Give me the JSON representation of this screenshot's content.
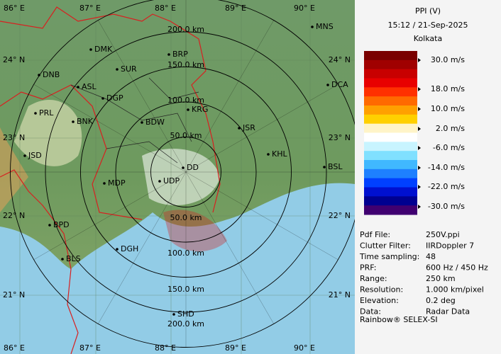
{
  "header": {
    "title": "PPI (V)",
    "datetime": "15:12 / 21-Sep-2025",
    "station": "Kolkata"
  },
  "colorbar": {
    "labels": [
      "30.0 m/s",
      "18.0 m/s",
      "10.0 m/s",
      "2.0 m/s",
      "-6.0 m/s",
      "-14.0 m/s",
      "-22.0 m/s",
      "-30.0 m/s"
    ],
    "colors": [
      "#7a0000",
      "#a00000",
      "#c80000",
      "#e80000",
      "#ff3000",
      "#ff6a00",
      "#ffa000",
      "#ffd000",
      "#fff4c8",
      "#ffffff",
      "#c8f4ff",
      "#80e0ff",
      "#40b8ff",
      "#1e80ff",
      "#0040ff",
      "#0010d0",
      "#000090",
      "#400070"
    ]
  },
  "info": {
    "rows": [
      [
        "Pdf File:",
        "250V.ppi"
      ],
      [
        "Clutter Filter:",
        "IIRDoppler 7"
      ],
      [
        "Time sampling:",
        "48"
      ],
      [
        "PRF:",
        "600 Hz / 450 Hz"
      ],
      [
        "Range:",
        "250 km"
      ],
      [
        "Resolution:",
        "1.000 km/pixel"
      ],
      [
        "Elevation:",
        "0.2 deg"
      ],
      [
        "Data:",
        "Radar Data"
      ]
    ]
  },
  "footer": "Rainbow® SELEX-SI",
  "map": {
    "lon_labels_top": [
      "86° E",
      "87° E",
      "88° E",
      "89° E",
      "90° E"
    ],
    "lon_labels_bottom": [
      "86° E",
      "87° E",
      "88° E",
      "89° E",
      "90° E"
    ],
    "lat_labels_left": [
      "24° N",
      "23° N",
      "22° N",
      "21° N"
    ],
    "lat_labels_right": [
      "24° N",
      "23° N",
      "22° N",
      "21° N"
    ],
    "range_labels_top": [
      "200.0 km",
      "150.0 km",
      "100.0 km",
      "50.0 km"
    ],
    "range_labels_bottom": [
      "50.0 km",
      "100.0 km",
      "150.0 km",
      "200.0 km"
    ],
    "cities": [
      "MNS",
      "DMK",
      "BRP",
      "DNB",
      "SUR",
      "DCA",
      "ASL",
      "DGP",
      "KRG",
      "PRL",
      "BNK",
      "BDW",
      "JSR",
      "KHL",
      "JSD",
      "BSL",
      "DD",
      "UDP",
      "MDP",
      "BPD",
      "DGH",
      "BLS",
      "SHD"
    ]
  }
}
